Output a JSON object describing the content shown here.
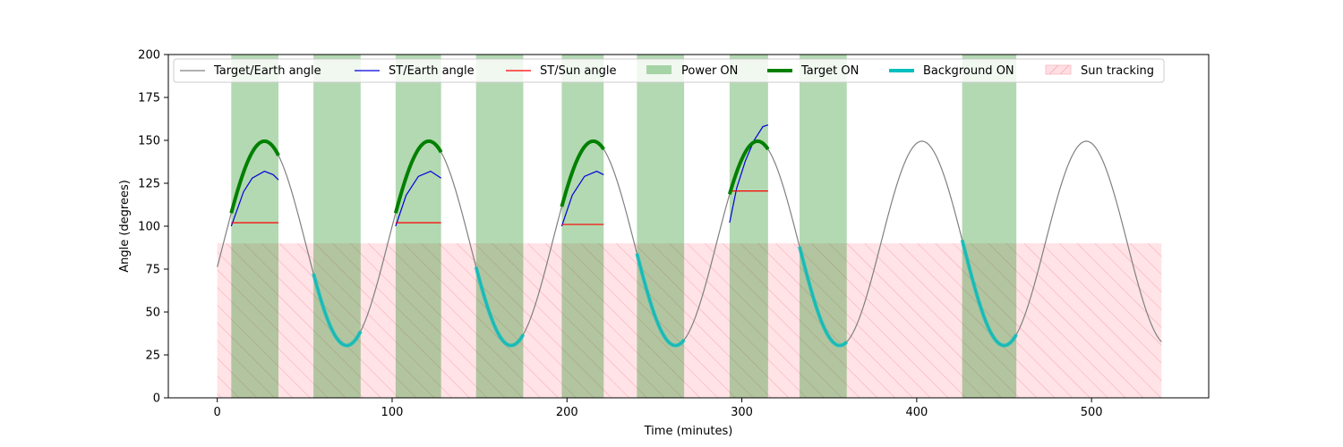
{
  "chart_data": {
    "type": "line",
    "xlabel": "Time (minutes)",
    "ylabel": "Angle (degrees)",
    "xlim": [
      -28,
      567
    ],
    "ylim": [
      0,
      200
    ],
    "xticks": [
      0,
      100,
      200,
      300,
      400,
      500
    ],
    "yticks": [
      0,
      25,
      50,
      75,
      100,
      125,
      150,
      175,
      200
    ],
    "grid": false,
    "legend_position": "top",
    "target_earth": {
      "name": "Target/Earth angle",
      "color": "#808080",
      "model": {
        "center": 90,
        "amplitude": 59.5,
        "period": 94,
        "peak_time": 27,
        "start": 0,
        "end": 540
      }
    },
    "st_earth": {
      "name": "ST/Earth angle",
      "color": "#0000dd",
      "segments": [
        {
          "t": [
            8,
            15,
            20,
            27,
            32,
            35
          ],
          "y": [
            100,
            120,
            128,
            132,
            130,
            127
          ]
        },
        {
          "t": [
            102,
            108,
            115,
            122,
            128
          ],
          "y": [
            100,
            118,
            129,
            132,
            128
          ]
        },
        {
          "t": [
            197,
            203,
            210,
            217,
            221
          ],
          "y": [
            100,
            118,
            129,
            132,
            130
          ]
        },
        {
          "t": [
            293,
            297,
            302,
            307,
            312,
            315
          ],
          "y": [
            102,
            122,
            138,
            150,
            158,
            159
          ]
        }
      ]
    },
    "st_sun": {
      "name": "ST/Sun angle",
      "color": "#ff0000",
      "segments": [
        {
          "t": [
            8,
            35
          ],
          "y": [
            102,
            102
          ]
        },
        {
          "t": [
            102,
            128
          ],
          "y": [
            102,
            102
          ]
        },
        {
          "t": [
            197,
            221
          ],
          "y": [
            101,
            101
          ]
        },
        {
          "t": [
            293,
            315
          ],
          "y": [
            120.5,
            120.5
          ]
        }
      ]
    },
    "power_on": {
      "name": "Power ON",
      "color": "#008000",
      "intervals": [
        [
          8,
          35
        ],
        [
          55,
          82
        ],
        [
          102,
          128
        ],
        [
          148,
          175
        ],
        [
          197,
          221
        ],
        [
          240,
          267
        ],
        [
          293,
          315
        ],
        [
          333,
          360
        ],
        [
          426,
          457
        ]
      ]
    },
    "target_on": {
      "name": "Target ON",
      "color": "#008000",
      "intervals": [
        [
          8,
          35
        ],
        [
          102,
          128
        ],
        [
          197,
          221
        ],
        [
          293,
          315
        ]
      ]
    },
    "background_on": {
      "name": "Background ON",
      "color": "#00bfbf",
      "intervals": [
        [
          55,
          82
        ],
        [
          148,
          175
        ],
        [
          240,
          267
        ],
        [
          333,
          360
        ],
        [
          426,
          457
        ]
      ]
    },
    "sun_tracking": {
      "name": "Sun tracking",
      "color": "#ffb6c1",
      "y_max": 90,
      "intervals": [
        [
          0,
          540
        ]
      ]
    }
  }
}
